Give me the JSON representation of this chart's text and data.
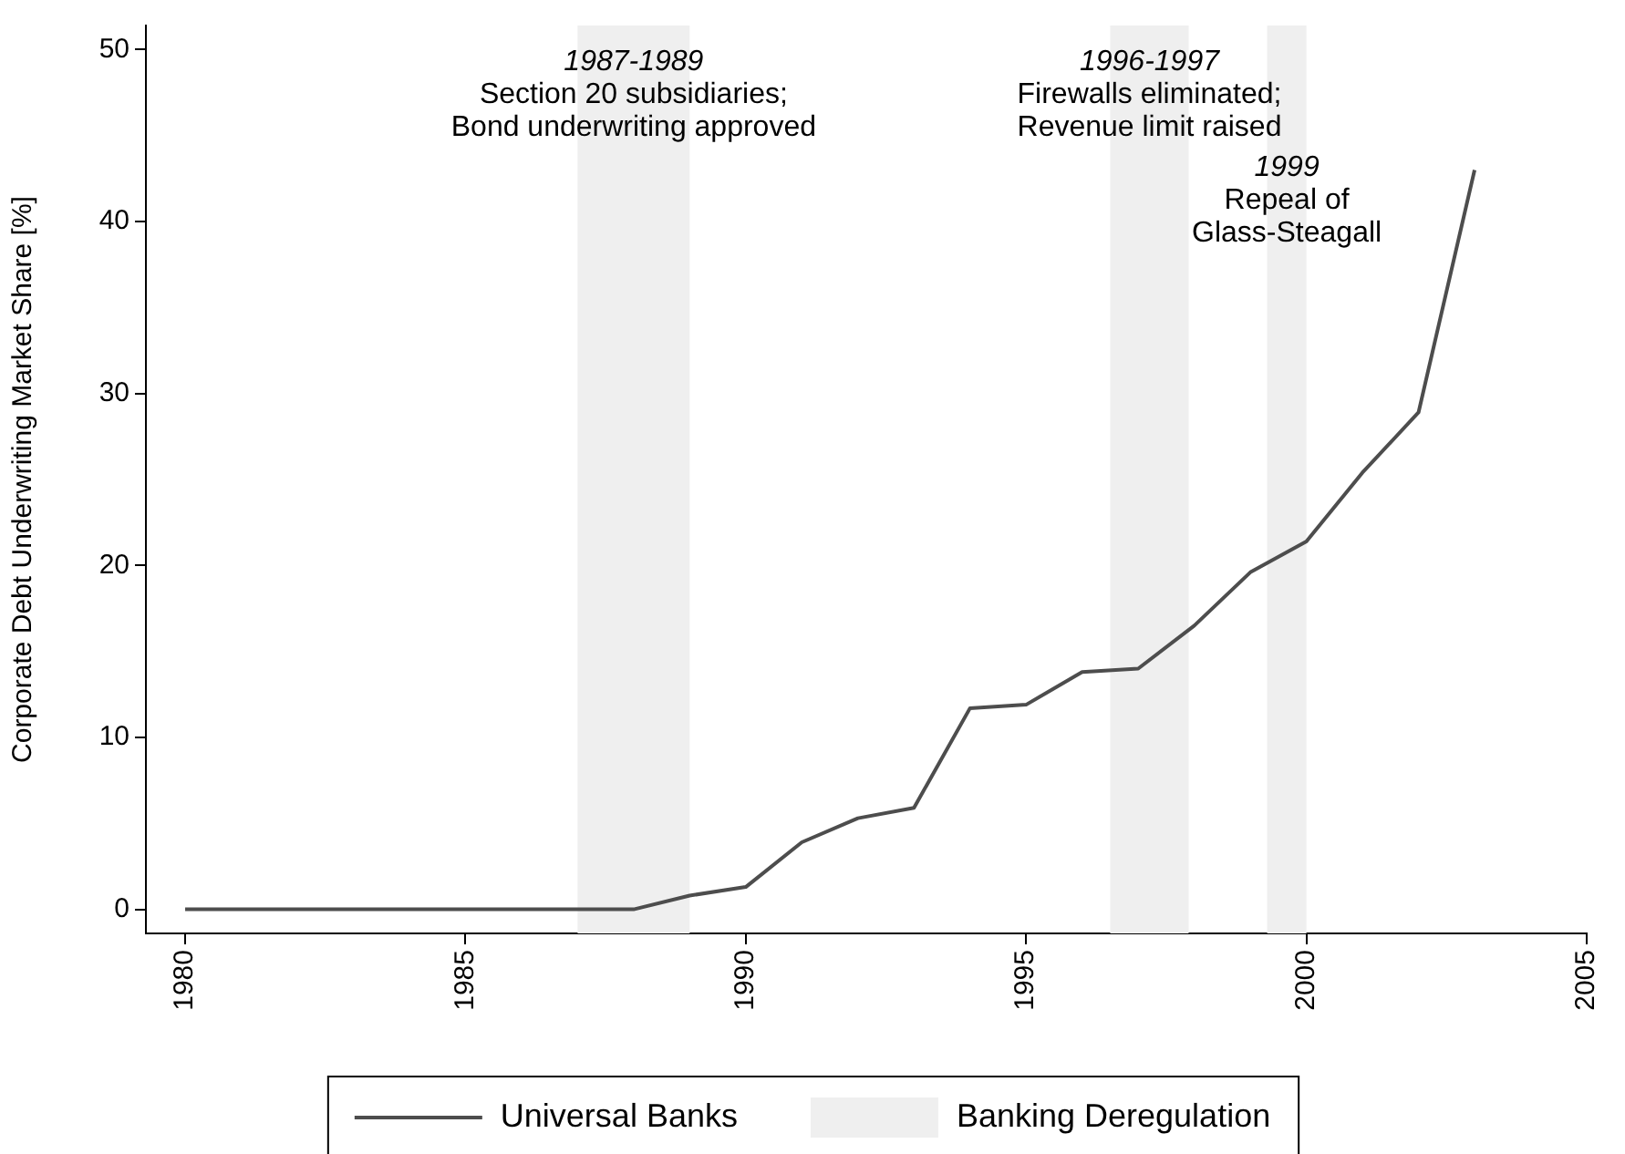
{
  "chart_data": {
    "type": "line",
    "ylabel": "Corporate Debt Underwriting Market Share [%]",
    "x": [
      1980,
      1981,
      1982,
      1983,
      1984,
      1985,
      1986,
      1987,
      1988,
      1989,
      1990,
      1991,
      1992,
      1993,
      1994,
      1995,
      1996,
      1997,
      1998,
      1999,
      2000,
      2001,
      2002,
      2003
    ],
    "series": [
      {
        "name": "Universal Banks",
        "color": "#4d4d4d",
        "values": [
          0,
          0,
          0,
          0,
          0,
          0,
          0,
          0,
          0,
          0.8,
          1.3,
          3.9,
          5.3,
          5.9,
          11.7,
          11.9,
          13.8,
          14.0,
          16.5,
          19.6,
          21.4,
          25.4,
          28.9,
          43.0
        ]
      }
    ],
    "bands": [
      {
        "axis": "x",
        "from": 1987,
        "to": 1989,
        "label": "Banking Deregulation",
        "color": "#efefef"
      },
      {
        "axis": "x",
        "from": 1996.5,
        "to": 1997.9,
        "color": "#efefef"
      },
      {
        "axis": "x",
        "from": 1999.3,
        "to": 2000,
        "color": "#efefef"
      }
    ],
    "annotations": [
      "1987-1989\nSection 20 subsidiaries;\nBond underwriting approved",
      "1996-1997\nFirewalls eliminated;\nRevenue limit raised",
      "1999\nRepeal of\nGlass-Steagall"
    ],
    "xlim": [
      1979.3,
      2005
    ],
    "xticks": [
      1980,
      1985,
      1990,
      1995,
      2000,
      2005
    ],
    "ylim": [
      -1.4,
      51.4
    ],
    "yticks": [
      0,
      10,
      20,
      30,
      40,
      50
    ],
    "grid": false,
    "legend": "bottom",
    "marker": "none",
    "line_style": "solid"
  }
}
